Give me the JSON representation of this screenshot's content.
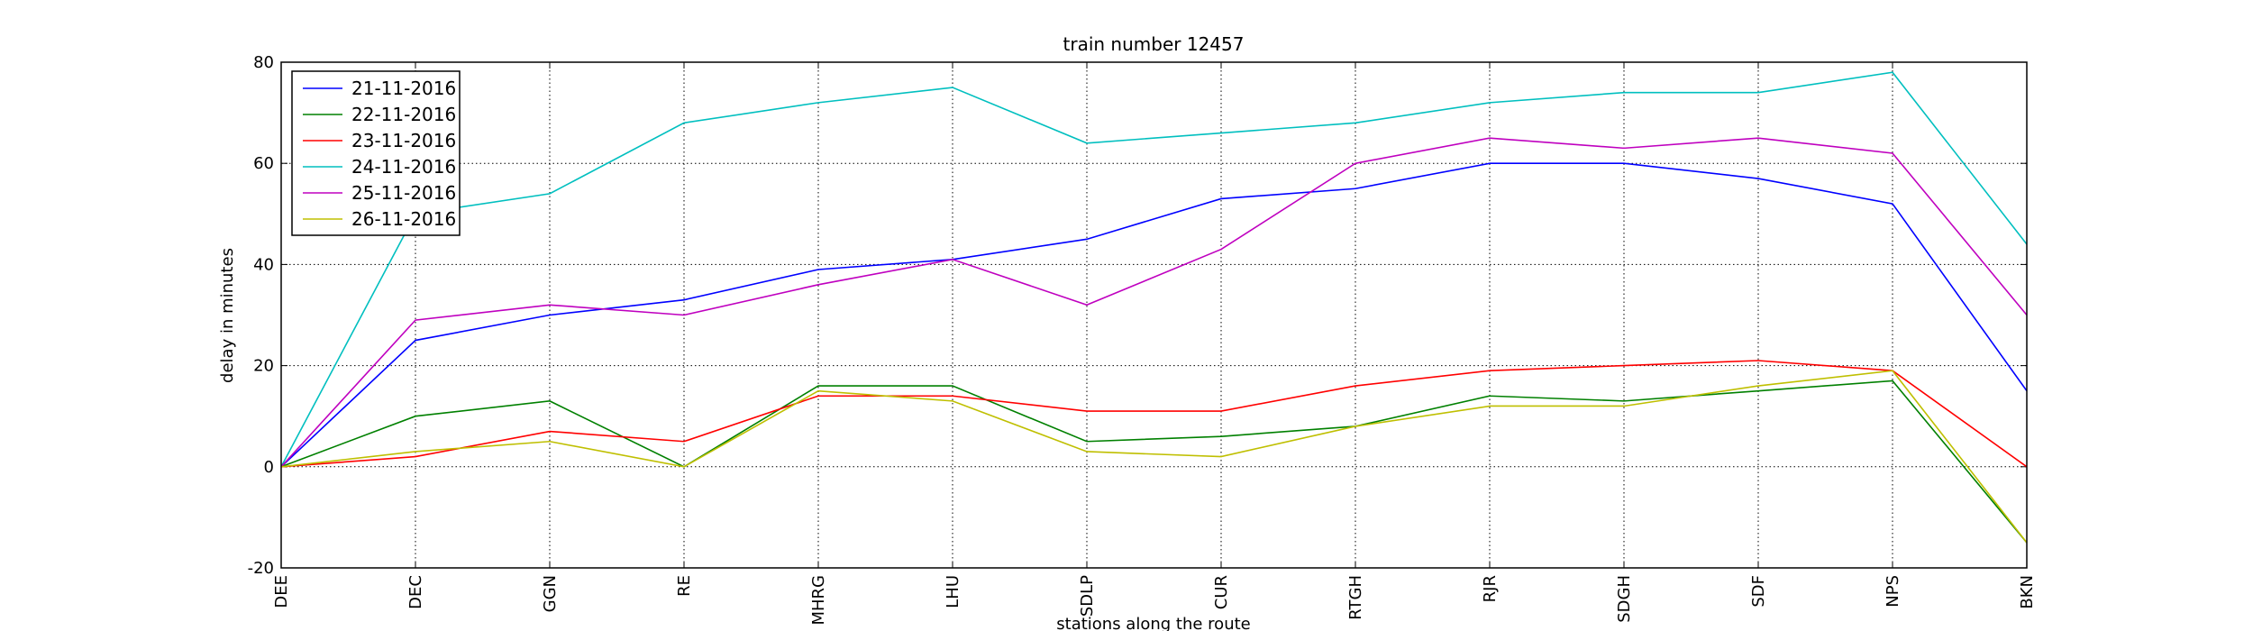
{
  "chart_data": {
    "type": "line",
    "title": "train number 12457",
    "xlabel": "stations along the route",
    "ylabel": "delay in minutes",
    "categories": [
      "DEE",
      "DEC",
      "GGN",
      "RE",
      "MHRG",
      "LHU",
      "SDLP",
      "CUR",
      "RTGH",
      "RJR",
      "SDGH",
      "SDF",
      "NPS",
      "BKN"
    ],
    "series": [
      {
        "name": "21-11-2016",
        "color": "#0000ff",
        "values": [
          0,
          25,
          30,
          33,
          39,
          41,
          45,
          53,
          55,
          60,
          60,
          57,
          52,
          15
        ]
      },
      {
        "name": "22-11-2016",
        "color": "#008000",
        "values": [
          0,
          10,
          13,
          0,
          16,
          16,
          5,
          6,
          8,
          14,
          13,
          15,
          17,
          -15
        ]
      },
      {
        "name": "23-11-2016",
        "color": "#ff0000",
        "values": [
          0,
          2,
          7,
          5,
          14,
          14,
          11,
          11,
          16,
          19,
          20,
          21,
          19,
          0
        ]
      },
      {
        "name": "24-11-2016",
        "color": "#00bfbf",
        "values": [
          0,
          50,
          54,
          68,
          72,
          75,
          64,
          66,
          68,
          72,
          74,
          74,
          78,
          44
        ]
      },
      {
        "name": "25-11-2016",
        "color": "#bf00bf",
        "values": [
          0,
          29,
          32,
          30,
          36,
          41,
          32,
          43,
          60,
          65,
          63,
          65,
          62,
          30
        ]
      },
      {
        "name": "26-11-2016",
        "color": "#bfbf00",
        "values": [
          0,
          3,
          5,
          0,
          15,
          13,
          3,
          2,
          8,
          12,
          12,
          16,
          19,
          -15
        ]
      }
    ],
    "ylim": [
      -20,
      80
    ],
    "yticks": [
      -20,
      0,
      20,
      40,
      60,
      80
    ],
    "grid": true,
    "legend": "upper left"
  }
}
